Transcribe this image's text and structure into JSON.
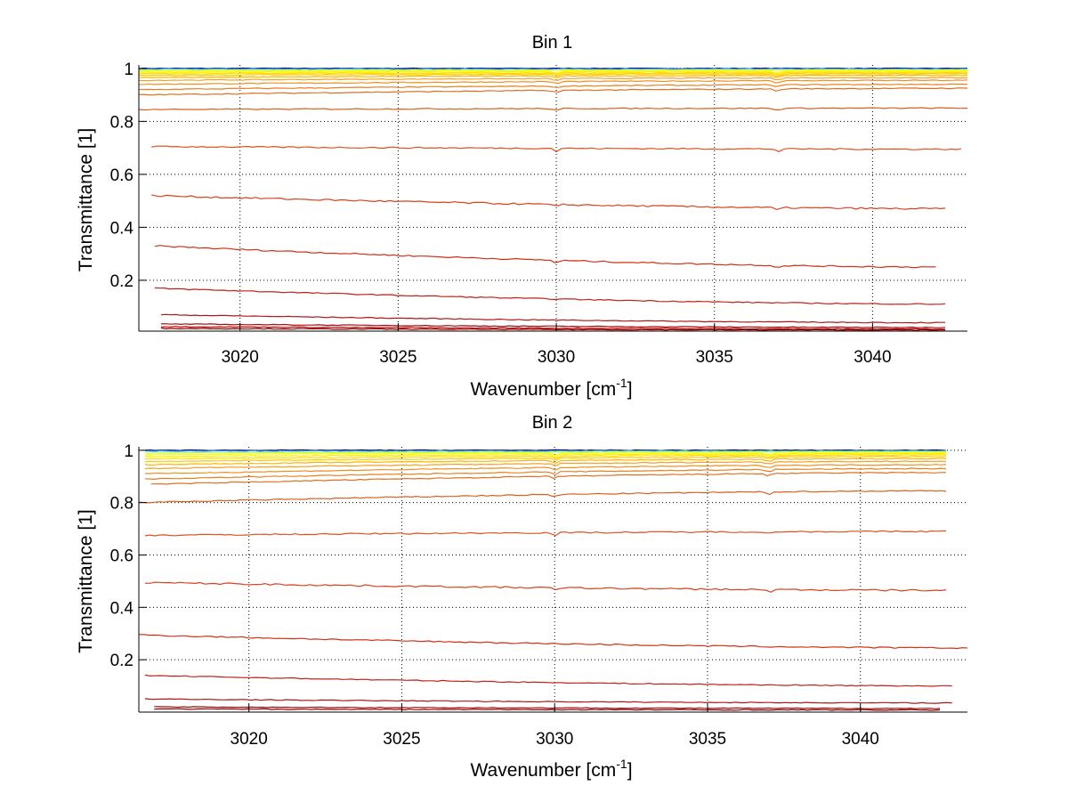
{
  "chart_data": [
    {
      "type": "line",
      "title": "Bin 1",
      "xlabel_parts": [
        "Wavenumber [cm",
        "-1",
        "]"
      ],
      "ylabel": "Transmittance [1]",
      "xlim": [
        3016.8,
        3043.0
      ],
      "ylim": [
        0.008,
        1.013
      ],
      "xticks": [
        3020,
        3025,
        3030,
        3035,
        3040
      ],
      "xtick_labels": [
        "3020",
        "3025",
        "3030",
        "3035",
        "3040"
      ],
      "yticks": [
        0.2,
        0.4,
        0.6,
        0.8,
        1
      ],
      "ytick_labels": [
        "0.2",
        "0.4",
        "0.6",
        "0.8",
        "1"
      ],
      "grid": true,
      "dips": [
        3030.0,
        3037.0
      ],
      "series": [
        {
          "x": [
            3016.8,
            3043.0
          ],
          "y": [
            1.0,
            1.0
          ],
          "color": "#00008f"
        },
        {
          "x": [
            3016.8,
            3043.0
          ],
          "y": [
            0.997,
            0.997
          ],
          "color": "#40c0ff"
        },
        {
          "x": [
            3016.8,
            3043.0
          ],
          "y": [
            0.993,
            0.994
          ],
          "color": "#c0ff40"
        },
        {
          "x": [
            3016.8,
            3043.0
          ],
          "y": [
            0.989,
            0.991
          ],
          "color": "#ffff00"
        },
        {
          "x": [
            3016.8,
            3043.0
          ],
          "y": [
            0.985,
            0.988
          ],
          "color": "#ffee00"
        },
        {
          "x": [
            3016.8,
            3043.0
          ],
          "y": [
            0.98,
            0.984
          ],
          "color": "#ffdd00"
        },
        {
          "x": [
            3016.8,
            3043.0
          ],
          "y": [
            0.974,
            0.98
          ],
          "color": "#ffc800"
        },
        {
          "x": [
            3016.8,
            3043.0
          ],
          "y": [
            0.966,
            0.974
          ],
          "color": "#ffb400"
        },
        {
          "x": [
            3016.8,
            3043.0
          ],
          "y": [
            0.955,
            0.965
          ],
          "color": "#f5a020"
        },
        {
          "x": [
            3016.8,
            3043.0
          ],
          "y": [
            0.94,
            0.955
          ],
          "color": "#f09020"
        },
        {
          "x": [
            3016.8,
            3043.0
          ],
          "y": [
            0.92,
            0.94
          ],
          "color": "#e88020"
        },
        {
          "x": [
            3016.8,
            3043.0
          ],
          "y": [
            0.9,
            0.925
          ],
          "color": "#e07020"
        },
        {
          "x": [
            3016.8,
            3043.0
          ],
          "y": [
            0.845,
            0.85
          ],
          "color": "#d86020"
        },
        {
          "x": [
            3017.2,
            3042.8
          ],
          "y": [
            0.705,
            0.695
          ],
          "color": "#e05020"
        },
        {
          "x": [
            3017.2,
            3042.3
          ],
          "y": [
            0.52,
            0.47
          ],
          "color": "#d84020"
        },
        {
          "x": [
            3017.3,
            3042.0
          ],
          "y": [
            0.33,
            0.25
          ],
          "color": "#d03018"
        },
        {
          "x": [
            3017.3,
            3042.3
          ],
          "y": [
            0.17,
            0.11
          ],
          "color": "#c02018"
        },
        {
          "x": [
            3017.5,
            3042.3
          ],
          "y": [
            0.07,
            0.04
          ],
          "color": "#b01818"
        },
        {
          "x": [
            3017.5,
            3042.3
          ],
          "y": [
            0.035,
            0.022
          ],
          "color": "#a01010"
        },
        {
          "x": [
            3017.5,
            3042.3
          ],
          "y": [
            0.025,
            0.016
          ],
          "color": "#c00000"
        },
        {
          "x": [
            3017.5,
            3042.3
          ],
          "y": [
            0.018,
            0.012
          ],
          "color": "#8b0000"
        }
      ]
    },
    {
      "type": "line",
      "title": "Bin 2",
      "xlabel_parts": [
        "Wavenumber [cm",
        "-1",
        "]"
      ],
      "ylabel": "Transmittance [1]",
      "xlim": [
        3016.4,
        3043.5
      ],
      "ylim": [
        0.0,
        1.013
      ],
      "xticks": [
        3020,
        3025,
        3030,
        3035,
        3040
      ],
      "xtick_labels": [
        "3020",
        "3025",
        "3030",
        "3035",
        "3040"
      ],
      "yticks": [
        0.2,
        0.4,
        0.6,
        0.8,
        1
      ],
      "ytick_labels": [
        "0.2",
        "0.4",
        "0.6",
        "0.8",
        "1"
      ],
      "grid": true,
      "dips": [
        3030.0,
        3037.0
      ],
      "series": [
        {
          "x": [
            3016.6,
            3042.8
          ],
          "y": [
            1.0,
            1.0
          ],
          "color": "#00008f"
        },
        {
          "x": [
            3016.6,
            3042.8
          ],
          "y": [
            0.996,
            0.997
          ],
          "color": "#40c0ff"
        },
        {
          "x": [
            3016.6,
            3042.8
          ],
          "y": [
            0.99,
            0.994
          ],
          "color": "#c0ff40"
        },
        {
          "x": [
            3016.6,
            3042.8
          ],
          "y": [
            0.984,
            0.991
          ],
          "color": "#ffff00"
        },
        {
          "x": [
            3016.6,
            3042.8
          ],
          "y": [
            0.976,
            0.987
          ],
          "color": "#ffee00"
        },
        {
          "x": [
            3016.6,
            3042.8
          ],
          "y": [
            0.967,
            0.982
          ],
          "color": "#ffdd00"
        },
        {
          "x": [
            3016.6,
            3042.8
          ],
          "y": [
            0.957,
            0.976
          ],
          "color": "#ffc800"
        },
        {
          "x": [
            3016.6,
            3042.8
          ],
          "y": [
            0.945,
            0.968
          ],
          "color": "#ffb400"
        },
        {
          "x": [
            3016.6,
            3042.8
          ],
          "y": [
            0.93,
            0.958
          ],
          "color": "#f5a020"
        },
        {
          "x": [
            3016.6,
            3042.8
          ],
          "y": [
            0.91,
            0.945
          ],
          "color": "#f09020"
        },
        {
          "x": [
            3016.6,
            3042.8
          ],
          "y": [
            0.89,
            0.93
          ],
          "color": "#e88020"
        },
        {
          "x": [
            3016.8,
            3042.8
          ],
          "y": [
            0.87,
            0.915
          ],
          "color": "#e07020"
        },
        {
          "x": [
            3016.4,
            3042.8
          ],
          "y": [
            0.8,
            0.845
          ],
          "color": "#d86020"
        },
        {
          "x": [
            3016.6,
            3042.8
          ],
          "y": [
            0.675,
            0.69
          ],
          "color": "#e05020"
        },
        {
          "x": [
            3016.6,
            3042.8
          ],
          "y": [
            0.495,
            0.465
          ],
          "color": "#d84020"
        },
        {
          "x": [
            3016.4,
            3043.5
          ],
          "y": [
            0.295,
            0.245
          ],
          "color": "#d03018"
        },
        {
          "x": [
            3016.6,
            3043.0
          ],
          "y": [
            0.14,
            0.1
          ],
          "color": "#c02018"
        },
        {
          "x": [
            3016.6,
            3043.0
          ],
          "y": [
            0.05,
            0.035
          ],
          "color": "#b01818"
        },
        {
          "x": [
            3016.9,
            3042.6
          ],
          "y": [
            0.02,
            0.014
          ],
          "color": "#a01010"
        },
        {
          "x": [
            3016.9,
            3042.6
          ],
          "y": [
            0.012,
            0.008
          ],
          "color": "#8b0000"
        }
      ]
    }
  ]
}
